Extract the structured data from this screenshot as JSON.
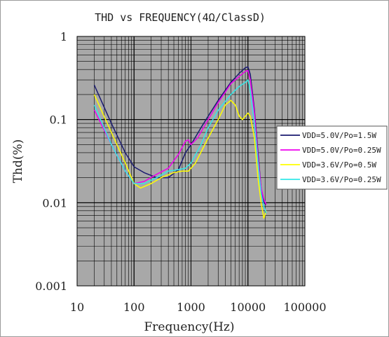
{
  "chart_data": {
    "type": "line",
    "title": "THD vs FREQUENCY(4Ω/ClassD)",
    "xlabel": "Frequency(Hz)",
    "ylabel": "Thd(%)",
    "x_scale": "log",
    "y_scale": "log",
    "xlim": [
      10,
      100000
    ],
    "ylim": [
      0.001,
      1
    ],
    "x_ticks": [
      {
        "value": 10,
        "label": "10"
      },
      {
        "value": 100,
        "label": "100"
      },
      {
        "value": 1000,
        "label": "1000"
      },
      {
        "value": 10000,
        "label": "10000"
      },
      {
        "value": 100000,
        "label": "100000"
      }
    ],
    "y_ticks": [
      {
        "value": 1,
        "label": "1"
      },
      {
        "value": 0.1,
        "label": "0.1"
      },
      {
        "value": 0.01,
        "label": "0.01"
      },
      {
        "value": 0.001,
        "label": "0.001"
      }
    ],
    "grid": true,
    "plot_background": "#a8a8a8",
    "legend_position": "right",
    "series": [
      {
        "name": "VDD=5.0V/Po=1.5W",
        "color": "#1a1a70",
        "points": [
          [
            20,
            0.26
          ],
          [
            40,
            0.09
          ],
          [
            70,
            0.04
          ],
          [
            100,
            0.027
          ],
          [
            150,
            0.023
          ],
          [
            250,
            0.02
          ],
          [
            400,
            0.02
          ],
          [
            600,
            0.025
          ],
          [
            800,
            0.04
          ],
          [
            1000,
            0.05
          ],
          [
            1500,
            0.08
          ],
          [
            2000,
            0.11
          ],
          [
            3000,
            0.17
          ],
          [
            5000,
            0.28
          ],
          [
            7000,
            0.36
          ],
          [
            9000,
            0.42
          ],
          [
            10000,
            0.43
          ],
          [
            11000,
            0.35
          ],
          [
            13000,
            0.13
          ],
          [
            15000,
            0.04
          ],
          [
            17000,
            0.015
          ],
          [
            19000,
            0.01
          ],
          [
            21000,
            0.0095
          ]
        ]
      },
      {
        "name": "VDD=5.0V/Po=0.25W",
        "color": "#ee00ee",
        "points": [
          [
            20,
            0.13
          ],
          [
            40,
            0.05
          ],
          [
            70,
            0.024
          ],
          [
            100,
            0.017
          ],
          [
            150,
            0.018
          ],
          [
            250,
            0.022
          ],
          [
            400,
            0.026
          ],
          [
            600,
            0.038
          ],
          [
            800,
            0.055
          ],
          [
            900,
            0.057
          ],
          [
            1000,
            0.05
          ],
          [
            1300,
            0.06
          ],
          [
            2000,
            0.1
          ],
          [
            3000,
            0.16
          ],
          [
            5000,
            0.27
          ],
          [
            7000,
            0.33
          ],
          [
            9000,
            0.38
          ],
          [
            10000,
            0.39
          ],
          [
            11000,
            0.3
          ],
          [
            13000,
            0.12
          ],
          [
            15000,
            0.035
          ],
          [
            17000,
            0.015
          ],
          [
            19000,
            0.011
          ],
          [
            21000,
            0.0095
          ]
        ]
      },
      {
        "name": "VDD=3.6V/Po=0.5W",
        "color": "#ffff00",
        "points": [
          [
            20,
            0.2
          ],
          [
            40,
            0.07
          ],
          [
            70,
            0.03
          ],
          [
            100,
            0.017
          ],
          [
            130,
            0.015
          ],
          [
            200,
            0.017
          ],
          [
            300,
            0.02
          ],
          [
            500,
            0.023
          ],
          [
            700,
            0.024
          ],
          [
            900,
            0.024
          ],
          [
            1200,
            0.03
          ],
          [
            2000,
            0.06
          ],
          [
            3000,
            0.1
          ],
          [
            4000,
            0.15
          ],
          [
            5000,
            0.17
          ],
          [
            6000,
            0.15
          ],
          [
            7000,
            0.11
          ],
          [
            8000,
            0.1
          ],
          [
            9000,
            0.11
          ],
          [
            10000,
            0.12
          ],
          [
            11000,
            0.11
          ],
          [
            13000,
            0.06
          ],
          [
            15000,
            0.02
          ],
          [
            17000,
            0.01
          ],
          [
            19000,
            0.0065
          ],
          [
            21000,
            0.008
          ]
        ]
      },
      {
        "name": "VDD=3.6V/Po=0.25W",
        "color": "#33e8e8",
        "points": [
          [
            20,
            0.15
          ],
          [
            40,
            0.05
          ],
          [
            70,
            0.024
          ],
          [
            100,
            0.017
          ],
          [
            150,
            0.017
          ],
          [
            250,
            0.02
          ],
          [
            400,
            0.024
          ],
          [
            600,
            0.025
          ],
          [
            800,
            0.026
          ],
          [
            1000,
            0.03
          ],
          [
            1500,
            0.05
          ],
          [
            2000,
            0.08
          ],
          [
            3000,
            0.13
          ],
          [
            5000,
            0.2
          ],
          [
            7000,
            0.25
          ],
          [
            9000,
            0.28
          ],
          [
            10000,
            0.3
          ],
          [
            11000,
            0.22
          ],
          [
            13000,
            0.09
          ],
          [
            15000,
            0.03
          ],
          [
            17000,
            0.013
          ],
          [
            19000,
            0.009
          ],
          [
            21000,
            0.0075
          ]
        ]
      }
    ]
  }
}
